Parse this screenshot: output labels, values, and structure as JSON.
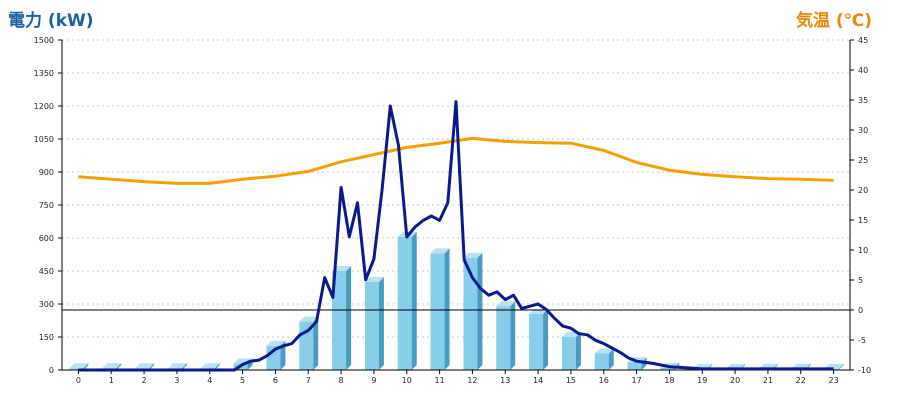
{
  "chart_data": {
    "type": "bar",
    "title": "",
    "y_left_label": "電力 (kW)",
    "y_right_label": "気温 (℃)",
    "categories": [
      "0",
      "1",
      "2",
      "3",
      "4",
      "5",
      "6",
      "7",
      "8",
      "9",
      "10",
      "11",
      "12",
      "13",
      "14",
      "15",
      "16",
      "17",
      "18",
      "19",
      "20",
      "21",
      "22",
      "23"
    ],
    "y_left_lim": [
      0,
      1500
    ],
    "y_left_ticks": [
      "0",
      "150",
      "300",
      "450",
      "600",
      "750",
      "900",
      "1050",
      "1200",
      "1350",
      "1500"
    ],
    "y_right_lim": [
      -10,
      45
    ],
    "y_right_ticks": [
      "-10",
      "-5",
      "0",
      "5",
      "10",
      "15",
      "20",
      "25",
      "30",
      "35",
      "40",
      "45"
    ],
    "bar_series": {
      "axis": "left",
      "color": "#87ceeb",
      "values": [
        8,
        8,
        8,
        8,
        8,
        30,
        110,
        220,
        450,
        400,
        605,
        530,
        510,
        290,
        255,
        150,
        75,
        35,
        10,
        5,
        5,
        5,
        5,
        5
      ]
    },
    "power_line": {
      "axis": "left",
      "color": "#0a1a8c",
      "x": [
        0,
        0.5,
        1,
        1.5,
        2,
        2.5,
        3,
        3.5,
        4,
        4.25,
        4.5,
        4.75,
        5,
        5.25,
        5.5,
        5.75,
        6,
        6.25,
        6.5,
        6.75,
        7,
        7.25,
        7.5,
        7.75,
        8,
        8.25,
        8.5,
        8.75,
        9,
        9.25,
        9.5,
        9.75,
        10,
        10.25,
        10.5,
        10.75,
        11,
        11.25,
        11.5,
        11.75,
        12,
        12.25,
        12.5,
        12.75,
        13,
        13.25,
        13.5,
        13.75,
        14,
        14.25,
        14.5,
        14.75,
        15,
        15.25,
        15.5,
        15.75,
        16,
        16.25,
        16.5,
        16.75,
        17,
        17.5,
        18,
        18.5,
        19,
        20,
        21,
        22,
        23
      ],
      "values": [
        0,
        0,
        0,
        0,
        0,
        0,
        0,
        0,
        0,
        0,
        0,
        0,
        25,
        40,
        45,
        65,
        95,
        110,
        120,
        160,
        180,
        220,
        420,
        330,
        830,
        605,
        760,
        410,
        505,
        820,
        1200,
        1020,
        605,
        650,
        680,
        700,
        680,
        760,
        1220,
        500,
        420,
        370,
        340,
        355,
        320,
        340,
        280,
        290,
        300,
        275,
        235,
        200,
        190,
        165,
        160,
        135,
        120,
        100,
        80,
        55,
        40,
        30,
        15,
        10,
        5,
        5,
        5,
        5,
        5
      ]
    },
    "temperature_line": {
      "axis": "right",
      "color": "#f5a000",
      "values": [
        22.2,
        21.8,
        21.4,
        21.1,
        21.1,
        21.8,
        22.3,
        23.1,
        24.7,
        25.9,
        27.1,
        27.8,
        28.6,
        28.1,
        27.9,
        27.8,
        26.6,
        24.6,
        23.3,
        22.6,
        22.2,
        21.9,
        21.8,
        21.6
      ]
    }
  }
}
